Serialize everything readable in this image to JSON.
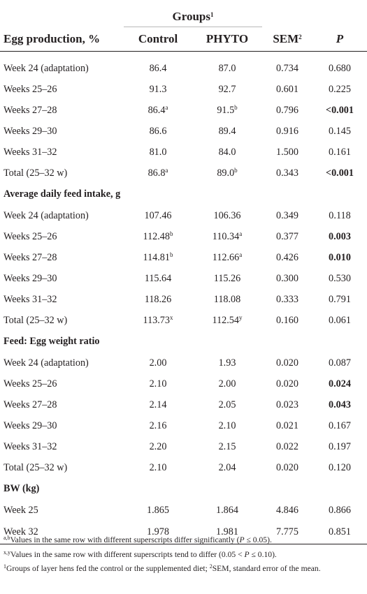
{
  "header": {
    "groups_label": "Groups",
    "groups_sup": "1",
    "col_label": "Egg production, %",
    "control": "Control",
    "phyto": "PHYTO",
    "sem": "SEM",
    "sem_sup": "2",
    "p": "P"
  },
  "sections": [
    {
      "title": "",
      "rows": [
        {
          "label": "Week 24 (adaptation)",
          "control": "86.4",
          "control_sup": "",
          "phyto": "87.0",
          "phyto_sup": "",
          "sem": "0.734",
          "p": "0.680",
          "p_bold": false
        },
        {
          "label": "Weeks 25–26",
          "control": "91.3",
          "control_sup": "",
          "phyto": "92.7",
          "phyto_sup": "",
          "sem": "0.601",
          "p": "0.225",
          "p_bold": false
        },
        {
          "label": "Weeks 27–28",
          "control": "86.4",
          "control_sup": "a",
          "phyto": "91.5",
          "phyto_sup": "b",
          "sem": "0.796",
          "p": "<0.001",
          "p_bold": true
        },
        {
          "label": "Weeks 29–30",
          "control": "86.6",
          "control_sup": "",
          "phyto": "89.4",
          "phyto_sup": "",
          "sem": "0.916",
          "p": "0.145",
          "p_bold": false
        },
        {
          "label": "Weeks 31–32",
          "control": "81.0",
          "control_sup": "",
          "phyto": "84.0",
          "phyto_sup": "",
          "sem": "1.500",
          "p": "0.161",
          "p_bold": false
        },
        {
          "label": "Total (25–32 w)",
          "control": "86.8",
          "control_sup": "a",
          "phyto": "89.0",
          "phyto_sup": "b",
          "sem": "0.343",
          "p": "<0.001",
          "p_bold": true
        }
      ]
    },
    {
      "title": "Average daily feed intake, g",
      "rows": [
        {
          "label": "Week 24 (adaptation)",
          "control": "107.46",
          "control_sup": "",
          "phyto": "106.36",
          "phyto_sup": "",
          "sem": "0.349",
          "p": "0.118",
          "p_bold": false
        },
        {
          "label": "Weeks 25–26",
          "control": "112.48",
          "control_sup": "b",
          "phyto": "110.34",
          "phyto_sup": "a",
          "sem": "0.377",
          "p": "0.003",
          "p_bold": true
        },
        {
          "label": "Weeks 27–28",
          "control": "114.81",
          "control_sup": "b",
          "phyto": "112.66",
          "phyto_sup": "a",
          "sem": "0.426",
          "p": "0.010",
          "p_bold": true
        },
        {
          "label": "Weeks 29–30",
          "control": "115.64",
          "control_sup": "",
          "phyto": "115.26",
          "phyto_sup": "",
          "sem": "0.300",
          "p": "0.530",
          "p_bold": false
        },
        {
          "label": "Weeks 31–32",
          "control": "118.26",
          "control_sup": "",
          "phyto": "118.08",
          "phyto_sup": "",
          "sem": "0.333",
          "p": "0.791",
          "p_bold": false
        },
        {
          "label": "Total (25–32 w)",
          "control": "113.73",
          "control_sup": "x",
          "phyto": "112.54",
          "phyto_sup": "y",
          "sem": "0.160",
          "p": "0.061",
          "p_bold": false
        }
      ]
    },
    {
      "title": "Feed: Egg weight ratio",
      "rows": [
        {
          "label": "Week 24 (adaptation)",
          "control": "2.00",
          "control_sup": "",
          "phyto": "1.93",
          "phyto_sup": "",
          "sem": "0.020",
          "p": "0.087",
          "p_bold": false
        },
        {
          "label": "Weeks 25–26",
          "control": "2.10",
          "control_sup": "",
          "phyto": "2.00",
          "phyto_sup": "",
          "sem": "0.020",
          "p": "0.024",
          "p_bold": true
        },
        {
          "label": "Weeks 27–28",
          "control": "2.14",
          "control_sup": "",
          "phyto": "2.05",
          "phyto_sup": "",
          "sem": "0.023",
          "p": "0.043",
          "p_bold": true
        },
        {
          "label": "Weeks 29–30",
          "control": "2.16",
          "control_sup": "",
          "phyto": "2.10",
          "phyto_sup": "",
          "sem": "0.021",
          "p": "0.167",
          "p_bold": false
        },
        {
          "label": "Weeks 31–32",
          "control": "2.20",
          "control_sup": "",
          "phyto": "2.15",
          "phyto_sup": "",
          "sem": "0.022",
          "p": "0.197",
          "p_bold": false
        },
        {
          "label": "Total (25–32 w)",
          "control": "2.10",
          "control_sup": "",
          "phyto": "2.04",
          "phyto_sup": "",
          "sem": "0.020",
          "p": "0.120",
          "p_bold": false
        }
      ]
    },
    {
      "title": "BW (kg)",
      "rows": [
        {
          "label": "Week 25",
          "control": "1.865",
          "control_sup": "",
          "phyto": "1.864",
          "phyto_sup": "",
          "sem": "4.846",
          "p": "0.866",
          "p_bold": false
        },
        {
          "label": "Week 32",
          "control": "1.978",
          "control_sup": "",
          "phyto": "1.981",
          "phyto_sup": "",
          "sem": "7.775",
          "p": "0.851",
          "p_bold": false
        }
      ]
    }
  ],
  "footnotes": {
    "f1_sup": "a,b",
    "f1_text": "Values in the same row with different superscripts differ significantly (",
    "f1_p": "P",
    "f1_tail": " ≤ 0.05).",
    "f2_sup": "x,y",
    "f2_text": "Values in the same row with different superscripts tend to differ (0.05 < ",
    "f2_p": "P",
    "f2_tail": " ≤ 0.10).",
    "f3_sup1": "1",
    "f3_text": "Groups of layer hens fed the control or the supplemented diet; ",
    "f3_sup2": "2",
    "f3_tail": "SEM, standard error of the mean."
  }
}
